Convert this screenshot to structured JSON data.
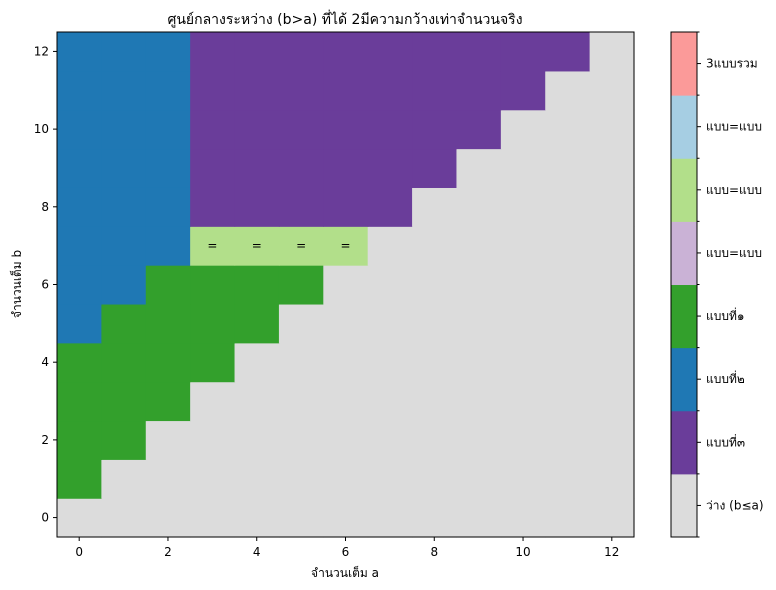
{
  "chart_data": {
    "type": "heatmap",
    "title": "ศูนย์กลางระหว่าง (b>a) ที่ได้ 2มีความกว้างเท่าจำนวนจริง",
    "xlabel": "จำนวนเต็ม a",
    "ylabel": "จำนวนเต็ม b",
    "xlim": [
      -0.5,
      12.5
    ],
    "ylim": [
      -0.5,
      12.5
    ],
    "xticks": [
      0,
      2,
      4,
      6,
      8,
      10,
      12
    ],
    "yticks": [
      0,
      2,
      4,
      6,
      8,
      10,
      12
    ],
    "grid": false,
    "legend_placement": "colorbar-right",
    "categories": [
      {
        "code": 0,
        "label": "ว่าง (b≤a)",
        "color": "#dcdcdc"
      },
      {
        "code": 1,
        "label": "แบบที่๓",
        "color": "#6a3d9a"
      },
      {
        "code": 2,
        "label": "แบบที่๒",
        "color": "#1f78b4"
      },
      {
        "code": 3,
        "label": "แบบที่๑",
        "color": "#33a02c"
      },
      {
        "code": 4,
        "label": "แบบ=แบบ",
        "color": "#cab2d6"
      },
      {
        "code": 5,
        "label": "แบบ=แบบ",
        "color": "#b2df8a"
      },
      {
        "code": 6,
        "label": "แบบ=แบบ",
        "color": "#a6cee3"
      },
      {
        "code": 7,
        "label": "3แบบรวม",
        "color": "#fb9a99"
      }
    ],
    "grid_rows_b0_to_b12": [
      [
        0,
        0,
        0,
        0,
        0,
        0,
        0,
        0,
        0,
        0,
        0,
        0,
        0
      ],
      [
        3,
        0,
        0,
        0,
        0,
        0,
        0,
        0,
        0,
        0,
        0,
        0,
        0
      ],
      [
        3,
        3,
        0,
        0,
        0,
        0,
        0,
        0,
        0,
        0,
        0,
        0,
        0
      ],
      [
        3,
        3,
        3,
        0,
        0,
        0,
        0,
        0,
        0,
        0,
        0,
        0,
        0
      ],
      [
        3,
        3,
        3,
        3,
        0,
        0,
        0,
        0,
        0,
        0,
        0,
        0,
        0
      ],
      [
        2,
        3,
        3,
        3,
        3,
        0,
        0,
        0,
        0,
        0,
        0,
        0,
        0
      ],
      [
        2,
        2,
        3,
        3,
        3,
        3,
        0,
        0,
        0,
        0,
        0,
        0,
        0
      ],
      [
        2,
        2,
        2,
        5,
        5,
        5,
        5,
        0,
        0,
        0,
        0,
        0,
        0
      ],
      [
        2,
        2,
        2,
        1,
        1,
        1,
        1,
        1,
        0,
        0,
        0,
        0,
        0
      ],
      [
        2,
        2,
        2,
        1,
        1,
        1,
        1,
        1,
        1,
        0,
        0,
        0,
        0
      ],
      [
        2,
        2,
        2,
        1,
        1,
        1,
        1,
        1,
        1,
        1,
        0,
        0,
        0
      ],
      [
        2,
        2,
        2,
        1,
        1,
        1,
        1,
        1,
        1,
        1,
        1,
        0,
        0
      ],
      [
        2,
        2,
        2,
        1,
        1,
        1,
        1,
        1,
        1,
        1,
        1,
        1,
        0
      ]
    ],
    "annotations": [
      {
        "a": 3,
        "b": 7,
        "text": "="
      },
      {
        "a": 4,
        "b": 7,
        "text": "="
      },
      {
        "a": 5,
        "b": 7,
        "text": "="
      },
      {
        "a": 6,
        "b": 7,
        "text": "="
      }
    ]
  }
}
